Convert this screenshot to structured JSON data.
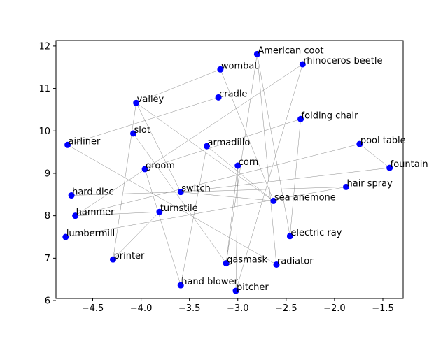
{
  "chart_data": {
    "type": "scatter",
    "title": "",
    "xlabel": "",
    "ylabel": "",
    "xlim": [
      -4.88,
      -1.29
    ],
    "ylim": [
      6.05,
      12.13
    ],
    "xticks": [
      -4.5,
      -4.0,
      -3.5,
      -3.0,
      -2.5,
      -2.0,
      -1.5
    ],
    "xtick_labels": [
      "−4.5",
      "−4.0",
      "−3.5",
      "−3.0",
      "−2.5",
      "−2.0",
      "−1.5"
    ],
    "yticks": [
      6,
      7,
      8,
      9,
      10,
      11,
      12
    ],
    "ytick_labels": [
      "6",
      "7",
      "8",
      "9",
      "10",
      "11",
      "12"
    ],
    "grid": false,
    "marker_color": "#0000ff",
    "edge_color": "#808080",
    "points": [
      {
        "label": "American coot",
        "x": -2.8,
        "y": 11.81
      },
      {
        "label": "rhinoceros beetle",
        "x": -2.33,
        "y": 11.57
      },
      {
        "label": "wombat",
        "x": -3.18,
        "y": 11.45
      },
      {
        "label": "cradle",
        "x": -3.2,
        "y": 10.79
      },
      {
        "label": "valley",
        "x": -4.05,
        "y": 10.66
      },
      {
        "label": "folding chair",
        "x": -2.35,
        "y": 10.28
      },
      {
        "label": "slot",
        "x": -4.08,
        "y": 9.94
      },
      {
        "label": "airliner",
        "x": -4.76,
        "y": 9.67
      },
      {
        "label": "pool table",
        "x": -1.74,
        "y": 9.69
      },
      {
        "label": "armadillo",
        "x": -3.32,
        "y": 9.64
      },
      {
        "label": "corn",
        "x": -3.0,
        "y": 9.18
      },
      {
        "label": "fountain",
        "x": -1.43,
        "y": 9.13
      },
      {
        "label": "groom",
        "x": -3.96,
        "y": 9.1
      },
      {
        "label": "hair spray",
        "x": -1.88,
        "y": 8.68
      },
      {
        "label": "switch",
        "x": -3.59,
        "y": 8.56
      },
      {
        "label": "hard disc",
        "x": -4.72,
        "y": 8.48
      },
      {
        "label": "sea anemone",
        "x": -2.63,
        "y": 8.35
      },
      {
        "label": "turnstile",
        "x": -3.81,
        "y": 8.09
      },
      {
        "label": "hammer",
        "x": -4.68,
        "y": 8.0
      },
      {
        "label": "electric ray",
        "x": -2.46,
        "y": 7.52
      },
      {
        "label": "lumbermill",
        "x": -4.78,
        "y": 7.5
      },
      {
        "label": "printer",
        "x": -4.29,
        "y": 6.97
      },
      {
        "label": "gasmask",
        "x": -3.12,
        "y": 6.88
      },
      {
        "label": "radiator",
        "x": -2.6,
        "y": 6.85
      },
      {
        "label": "hand blower",
        "x": -3.59,
        "y": 6.36
      },
      {
        "label": "pitcher",
        "x": -3.02,
        "y": 6.23
      }
    ],
    "edges": [
      [
        "American coot",
        "electric ray"
      ],
      [
        "American coot",
        "radiator"
      ],
      [
        "American coot",
        "gasmask"
      ],
      [
        "rhinoceros beetle",
        "pitcher"
      ],
      [
        "rhinoceros beetle",
        "hammer"
      ],
      [
        "wombat",
        "valley"
      ],
      [
        "wombat",
        "sea anemone"
      ],
      [
        "cradle",
        "airliner"
      ],
      [
        "valley",
        "sea anemone"
      ],
      [
        "valley",
        "printer"
      ],
      [
        "valley",
        "switch"
      ],
      [
        "folding chair",
        "electric ray"
      ],
      [
        "folding chair",
        "groom"
      ],
      [
        "slot",
        "gasmask"
      ],
      [
        "airliner",
        "radiator"
      ],
      [
        "pool table",
        "fountain"
      ],
      [
        "pool table",
        "hammer"
      ],
      [
        "armadillo",
        "sea anemone"
      ],
      [
        "armadillo",
        "hand blower"
      ],
      [
        "corn",
        "gasmask"
      ],
      [
        "corn",
        "pitcher"
      ],
      [
        "fountain",
        "switch"
      ],
      [
        "hair spray",
        "lumbermill"
      ],
      [
        "hair spray",
        "hard disc"
      ],
      [
        "switch",
        "sea anemone"
      ],
      [
        "groom",
        "hand blower"
      ],
      [
        "hammer",
        "turnstile"
      ],
      [
        "turnstile",
        "printer"
      ]
    ]
  }
}
